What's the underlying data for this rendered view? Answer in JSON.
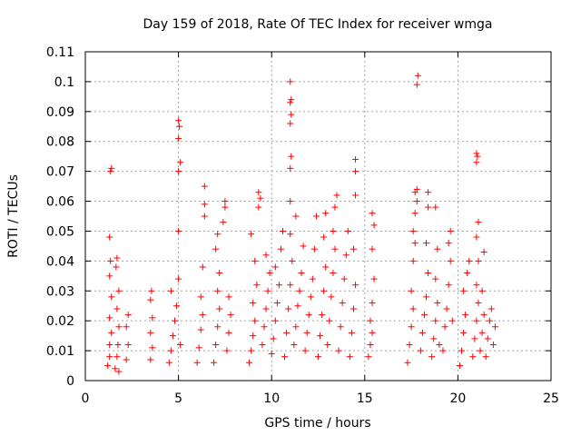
{
  "chart_data": {
    "type": "scatter",
    "title": "Day 159 of 2018, Rate Of TEC Index for receiver wmga",
    "xlabel": "GPS time / hours",
    "ylabel": "ROTI / TECUs",
    "xlim": [
      0,
      25
    ],
    "ylim": [
      0,
      0.11
    ],
    "xticks": [
      "0",
      "5",
      "10",
      "15",
      "20",
      "25"
    ],
    "yticks": [
      "0",
      "0.01",
      "0.02",
      "0.03",
      "0.04",
      "0.05",
      "0.06",
      "0.07",
      "0.08",
      "0.09",
      "0.1",
      "0.11"
    ],
    "grid": true,
    "marker": "plus",
    "color": "#ff0000",
    "series": [
      {
        "points": [
          [
            1.2,
            0.005
          ],
          [
            1.3,
            0.008
          ],
          [
            1.3,
            0.012
          ],
          [
            1.4,
            0.016
          ],
          [
            1.3,
            0.021
          ],
          [
            1.4,
            0.028
          ],
          [
            1.3,
            0.035
          ],
          [
            1.35,
            0.04
          ],
          [
            1.3,
            0.048
          ],
          [
            1.35,
            0.07
          ],
          [
            1.4,
            0.071
          ],
          [
            1.6,
            0.004
          ],
          [
            1.7,
            0.008
          ],
          [
            1.75,
            0.012
          ],
          [
            1.8,
            0.018
          ],
          [
            1.7,
            0.024
          ],
          [
            1.8,
            0.03
          ],
          [
            1.65,
            0.038
          ],
          [
            1.7,
            0.041
          ],
          [
            1.8,
            0.003
          ],
          [
            2.2,
            0.007
          ],
          [
            2.3,
            0.012
          ],
          [
            2.2,
            0.018
          ],
          [
            2.3,
            0.022
          ],
          [
            3.5,
            0.007
          ],
          [
            3.6,
            0.011
          ],
          [
            3.5,
            0.016
          ],
          [
            3.6,
            0.021
          ],
          [
            3.5,
            0.027
          ],
          [
            3.55,
            0.03
          ],
          [
            4.5,
            0.006
          ],
          [
            4.6,
            0.01
          ],
          [
            4.7,
            0.015
          ],
          [
            4.8,
            0.02
          ],
          [
            4.9,
            0.025
          ],
          [
            4.6,
            0.03
          ],
          [
            5.0,
            0.034
          ],
          [
            5.1,
            0.012
          ],
          [
            5.0,
            0.05
          ],
          [
            5.0,
            0.07
          ],
          [
            5.1,
            0.073
          ],
          [
            5.0,
            0.081
          ],
          [
            5.05,
            0.085
          ],
          [
            5.0,
            0.087
          ],
          [
            6.0,
            0.006
          ],
          [
            6.1,
            0.011
          ],
          [
            6.2,
            0.017
          ],
          [
            6.3,
            0.022
          ],
          [
            6.2,
            0.028
          ],
          [
            6.3,
            0.038
          ],
          [
            6.4,
            0.055
          ],
          [
            6.4,
            0.059
          ],
          [
            6.4,
            0.065
          ],
          [
            6.9,
            0.006
          ],
          [
            7.0,
            0.012
          ],
          [
            7.1,
            0.018
          ],
          [
            7.2,
            0.024
          ],
          [
            7.1,
            0.03
          ],
          [
            7.2,
            0.036
          ],
          [
            7.0,
            0.044
          ],
          [
            7.1,
            0.049
          ],
          [
            7.4,
            0.053
          ],
          [
            7.5,
            0.058
          ],
          [
            7.5,
            0.06
          ],
          [
            7.6,
            0.01
          ],
          [
            7.7,
            0.016
          ],
          [
            7.8,
            0.022
          ],
          [
            7.7,
            0.028
          ],
          [
            8.8,
            0.006
          ],
          [
            8.9,
            0.01
          ],
          [
            9.0,
            0.015
          ],
          [
            9.1,
            0.02
          ],
          [
            9.0,
            0.026
          ],
          [
            9.2,
            0.032
          ],
          [
            9.1,
            0.04
          ],
          [
            8.9,
            0.049
          ],
          [
            9.3,
            0.058
          ],
          [
            9.4,
            0.061
          ],
          [
            9.3,
            0.063
          ],
          [
            9.5,
            0.012
          ],
          [
            9.6,
            0.018
          ],
          [
            9.7,
            0.024
          ],
          [
            9.8,
            0.03
          ],
          [
            9.9,
            0.036
          ],
          [
            9.7,
            0.042
          ],
          [
            10.0,
            0.009
          ],
          [
            10.1,
            0.014
          ],
          [
            10.2,
            0.02
          ],
          [
            10.3,
            0.026
          ],
          [
            10.4,
            0.032
          ],
          [
            10.2,
            0.038
          ],
          [
            10.5,
            0.044
          ],
          [
            10.6,
            0.05
          ],
          [
            10.7,
            0.008
          ],
          [
            10.8,
            0.016
          ],
          [
            10.9,
            0.024
          ],
          [
            11.0,
            0.032
          ],
          [
            11.1,
            0.04
          ],
          [
            11.0,
            0.049
          ],
          [
            11.0,
            0.06
          ],
          [
            11.0,
            0.071
          ],
          [
            11.05,
            0.075
          ],
          [
            11.0,
            0.086
          ],
          [
            11.05,
            0.089
          ],
          [
            11.0,
            0.093
          ],
          [
            11.05,
            0.094
          ],
          [
            11.0,
            0.1
          ],
          [
            11.2,
            0.012
          ],
          [
            11.3,
            0.018
          ],
          [
            11.4,
            0.025
          ],
          [
            11.3,
            0.055
          ],
          [
            11.5,
            0.03
          ],
          [
            11.6,
            0.036
          ],
          [
            11.7,
            0.045
          ],
          [
            11.8,
            0.01
          ],
          [
            11.9,
            0.016
          ],
          [
            12.0,
            0.022
          ],
          [
            12.1,
            0.028
          ],
          [
            12.2,
            0.034
          ],
          [
            12.3,
            0.044
          ],
          [
            12.4,
            0.055
          ],
          [
            12.5,
            0.008
          ],
          [
            12.6,
            0.015
          ],
          [
            12.7,
            0.022
          ],
          [
            12.8,
            0.03
          ],
          [
            12.9,
            0.038
          ],
          [
            12.8,
            0.048
          ],
          [
            12.9,
            0.056
          ],
          [
            13.0,
            0.012
          ],
          [
            13.1,
            0.02
          ],
          [
            13.2,
            0.028
          ],
          [
            13.3,
            0.036
          ],
          [
            13.4,
            0.044
          ],
          [
            13.3,
            0.05
          ],
          [
            13.4,
            0.058
          ],
          [
            13.5,
            0.062
          ],
          [
            13.6,
            0.01
          ],
          [
            13.7,
            0.018
          ],
          [
            13.8,
            0.026
          ],
          [
            13.9,
            0.034
          ],
          [
            14.0,
            0.042
          ],
          [
            14.1,
            0.05
          ],
          [
            14.2,
            0.008
          ],
          [
            14.3,
            0.016
          ],
          [
            14.4,
            0.024
          ],
          [
            14.5,
            0.032
          ],
          [
            14.4,
            0.044
          ],
          [
            14.5,
            0.062
          ],
          [
            14.5,
            0.07
          ],
          [
            14.5,
            0.074
          ],
          [
            15.2,
            0.008
          ],
          [
            15.3,
            0.012
          ],
          [
            15.4,
            0.016
          ],
          [
            15.3,
            0.02
          ],
          [
            15.4,
            0.026
          ],
          [
            15.5,
            0.034
          ],
          [
            15.4,
            0.044
          ],
          [
            15.5,
            0.052
          ],
          [
            15.4,
            0.056
          ],
          [
            17.3,
            0.006
          ],
          [
            17.4,
            0.012
          ],
          [
            17.5,
            0.018
          ],
          [
            17.6,
            0.024
          ],
          [
            17.5,
            0.03
          ],
          [
            17.6,
            0.04
          ],
          [
            17.7,
            0.046
          ],
          [
            17.6,
            0.05
          ],
          [
            17.7,
            0.056
          ],
          [
            17.8,
            0.06
          ],
          [
            17.7,
            0.063
          ],
          [
            17.8,
            0.064
          ],
          [
            17.8,
            0.099
          ],
          [
            17.85,
            0.102
          ],
          [
            18.0,
            0.01
          ],
          [
            18.1,
            0.016
          ],
          [
            18.2,
            0.022
          ],
          [
            18.3,
            0.028
          ],
          [
            18.4,
            0.036
          ],
          [
            18.3,
            0.046
          ],
          [
            18.4,
            0.058
          ],
          [
            18.4,
            0.063
          ],
          [
            18.6,
            0.008
          ],
          [
            18.7,
            0.014
          ],
          [
            18.8,
            0.02
          ],
          [
            18.9,
            0.026
          ],
          [
            18.8,
            0.034
          ],
          [
            18.9,
            0.044
          ],
          [
            18.8,
            0.058
          ],
          [
            19.0,
            0.012
          ],
          [
            19.2,
            0.01
          ],
          [
            19.3,
            0.018
          ],
          [
            19.4,
            0.024
          ],
          [
            19.5,
            0.032
          ],
          [
            19.6,
            0.04
          ],
          [
            19.5,
            0.046
          ],
          [
            19.6,
            0.05
          ],
          [
            19.7,
            0.02
          ],
          [
            20.1,
            0.005
          ],
          [
            20.2,
            0.01
          ],
          [
            20.3,
            0.016
          ],
          [
            20.4,
            0.022
          ],
          [
            20.3,
            0.03
          ],
          [
            20.5,
            0.036
          ],
          [
            20.6,
            0.04
          ],
          [
            20.8,
            0.008
          ],
          [
            20.9,
            0.014
          ],
          [
            21.0,
            0.02
          ],
          [
            21.1,
            0.026
          ],
          [
            21.0,
            0.032
          ],
          [
            21.1,
            0.04
          ],
          [
            21.0,
            0.048
          ],
          [
            21.1,
            0.053
          ],
          [
            21.0,
            0.073
          ],
          [
            21.05,
            0.075
          ],
          [
            21.0,
            0.076
          ],
          [
            21.2,
            0.01
          ],
          [
            21.3,
            0.016
          ],
          [
            21.4,
            0.022
          ],
          [
            21.3,
            0.03
          ],
          [
            21.4,
            0.043
          ],
          [
            21.5,
            0.008
          ],
          [
            21.6,
            0.014
          ],
          [
            21.7,
            0.02
          ],
          [
            21.8,
            0.024
          ],
          [
            21.9,
            0.012
          ],
          [
            22.0,
            0.018
          ]
        ]
      }
    ]
  }
}
